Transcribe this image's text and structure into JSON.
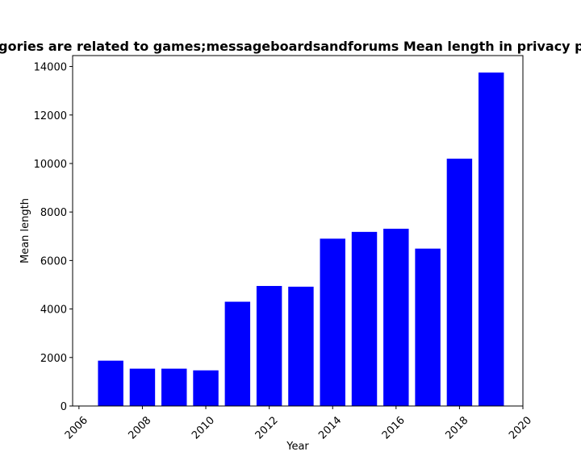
{
  "chart_data": {
    "type": "bar",
    "title": "Categories are related to games;messageboardsandforums Mean length in privacy policies",
    "xlabel": "Year",
    "ylabel": "Mean length",
    "x": [
      2007,
      2008,
      2009,
      2010,
      2011,
      2012,
      2013,
      2014,
      2015,
      2016,
      2017,
      2018,
      2019
    ],
    "values": [
      1870,
      1540,
      1540,
      1470,
      4300,
      4950,
      4920,
      6900,
      7180,
      7310,
      6490,
      10200,
      13750
    ],
    "bar_color": "#0000ff",
    "xlim": [
      2005.8,
      2020.0
    ],
    "ylim": [
      0,
      14450
    ],
    "xticks": [
      2006,
      2008,
      2010,
      2012,
      2014,
      2016,
      2018,
      2020
    ],
    "xtick_labels": [
      "2006",
      "2008",
      "2010",
      "2012",
      "2014",
      "2016",
      "2018",
      "2020"
    ],
    "yticks": [
      0,
      2000,
      4000,
      6000,
      8000,
      10000,
      12000,
      14000
    ],
    "ytick_labels": [
      "0",
      "2000",
      "4000",
      "6000",
      "8000",
      "10000",
      "12000",
      "14000"
    ],
    "grid": false,
    "legend": false
  }
}
